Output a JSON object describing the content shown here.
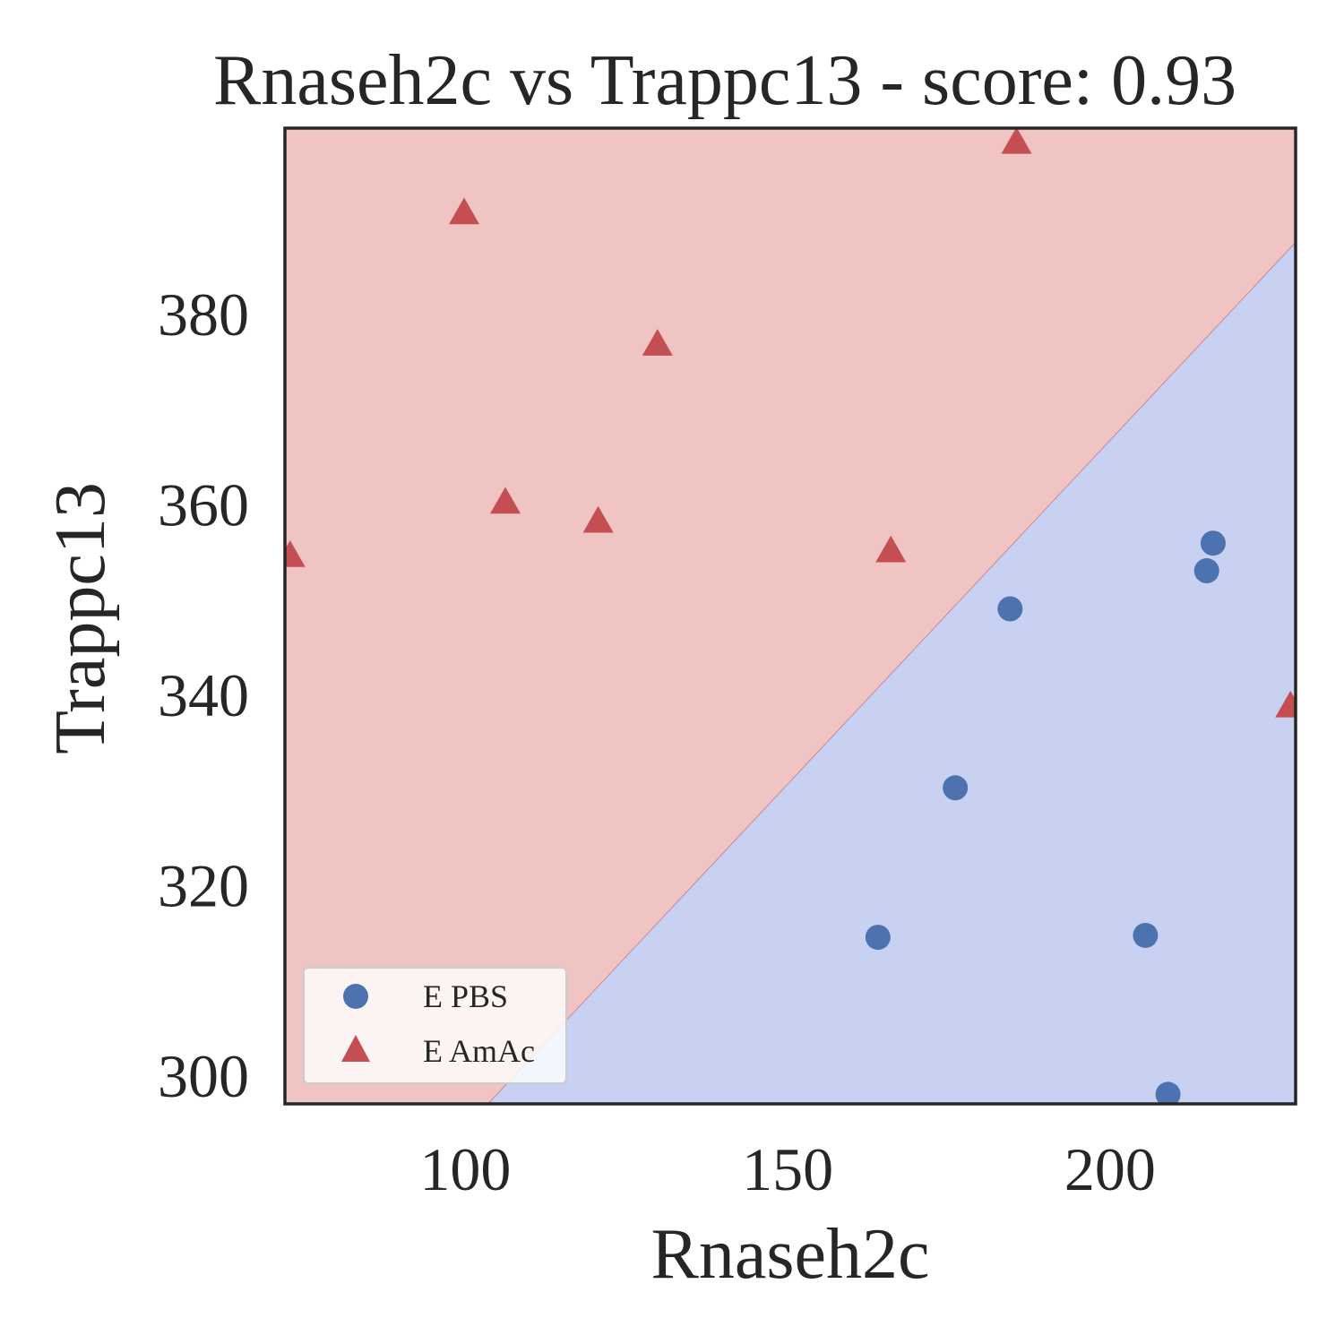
{
  "chart_data": {
    "type": "scatter",
    "title": "Rnaseh2c vs Trappc13 - score: 0.93",
    "xlabel": "Rnaseh2c",
    "ylabel": "Trappc13",
    "xlim": [
      72,
      228.8
    ],
    "ylim": [
      297,
      399.5
    ],
    "x_ticks": [
      100,
      150,
      200
    ],
    "y_ticks": [
      300,
      320,
      340,
      360,
      380
    ],
    "grid": false,
    "legend_position": "lower-left",
    "decision_boundary": {
      "line": [
        [
          103.5,
          297
        ],
        [
          228.8,
          387.5
        ]
      ],
      "regions": [
        {
          "label": "E AmAc",
          "side": "upper-left",
          "color": "#efc4c3"
        },
        {
          "label": "E PBS",
          "side": "lower-right",
          "color": "#c9d1f2"
        }
      ],
      "line_color": "#c38b9b"
    },
    "series": [
      {
        "name": "E PBS",
        "marker": "circle",
        "color": "#4c72b0",
        "points": [
          [
            184.5,
            349.0
          ],
          [
            176.0,
            330.2
          ],
          [
            164.0,
            314.5
          ],
          [
            205.5,
            314.7
          ],
          [
            215.0,
            353.0
          ],
          [
            216.0,
            355.9
          ],
          [
            209.0,
            298.0
          ]
        ]
      },
      {
        "name": "E AmAc",
        "marker": "triangle",
        "color": "#c44e52",
        "points": [
          [
            99.8,
            390.6
          ],
          [
            185.5,
            398.0
          ],
          [
            129.8,
            376.8
          ],
          [
            106.2,
            360.2
          ],
          [
            120.6,
            358.2
          ],
          [
            72.8,
            354.6
          ],
          [
            166.0,
            355.1
          ],
          [
            228.0,
            338.8
          ]
        ]
      }
    ]
  }
}
